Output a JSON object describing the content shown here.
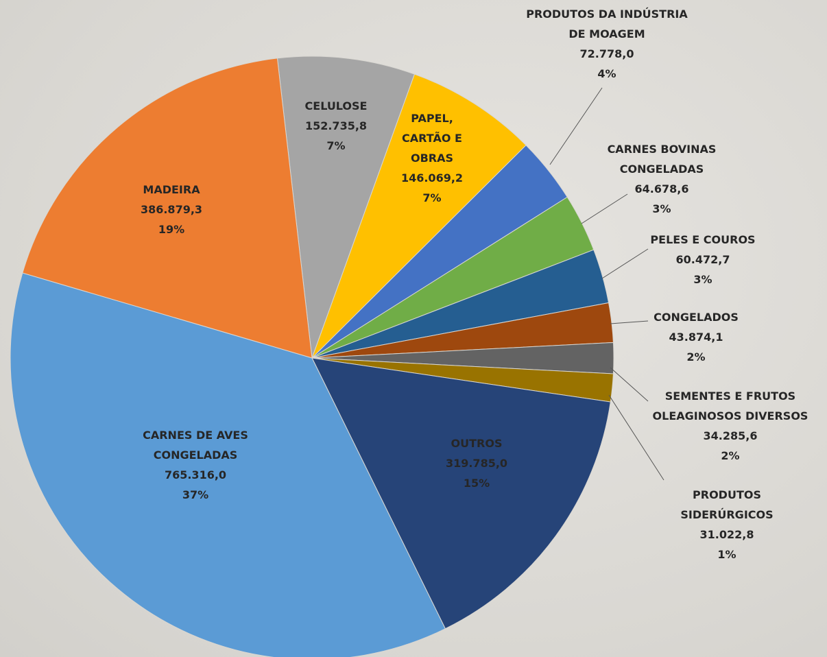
{
  "chart_data": {
    "type": "pie",
    "categories": [
      "CELULOSE",
      "PAPEL, CARTÃO E OBRAS",
      "PRODUTOS DA INDÚSTRIA DE MOAGEM",
      "CARNES BOVINAS CONGELADAS",
      "PELES E COUROS",
      "CONGELADOS",
      "SEMENTES E FRUTOS OLEAGINOSOS DIVERSOS",
      "PRODUTOS SIDERÚRGICOS",
      "OUTROS",
      "CARNES DE AVES CONGELADAS",
      "MADEIRA"
    ],
    "values": [
      152735.8,
      146069.2,
      72778.0,
      64678.6,
      60472.7,
      43874.1,
      34285.6,
      31022.8,
      319785.0,
      765316.0,
      386879.3
    ],
    "value_labels": [
      "152.735,8",
      "146.069,2",
      "72.778,0",
      "64.678,6",
      "60.472,7",
      "43.874,1",
      "34.285,6",
      "31.022,8",
      "319.785,0",
      "765.316,0",
      "386.879,3"
    ],
    "percent_labels": [
      "7%",
      "7%",
      "4%",
      "3%",
      "3%",
      "2%",
      "2%",
      "1%",
      "15%",
      "37%",
      "19%"
    ],
    "colors": [
      "#a5a5a5",
      "#ffc000",
      "#4472c4",
      "#70ad47",
      "#255e91",
      "#9e480e",
      "#636363",
      "#997300",
      "#264478",
      "#5b9bd5",
      "#ed7d31"
    ]
  }
}
